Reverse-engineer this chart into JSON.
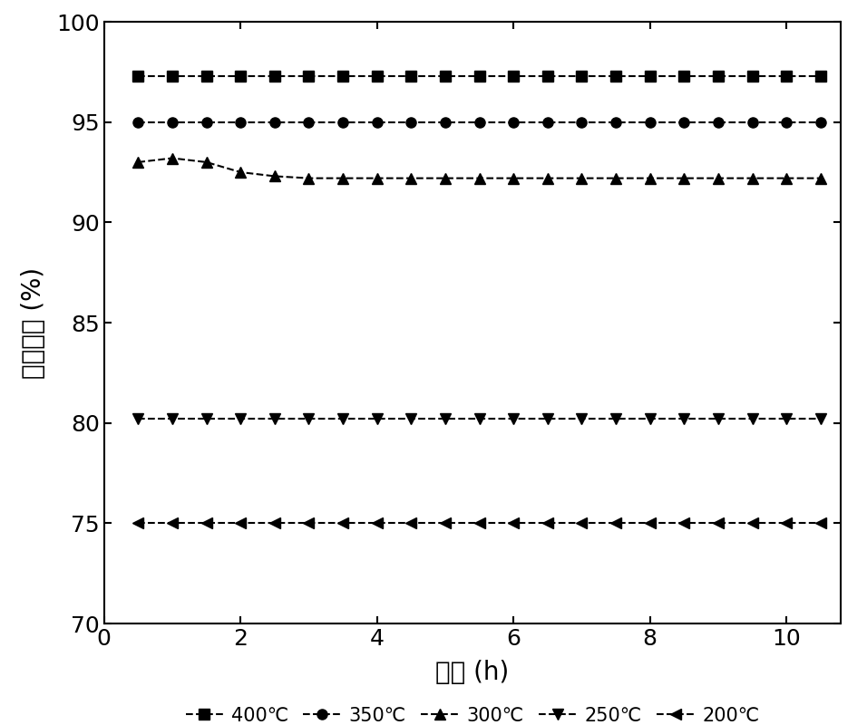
{
  "title": "",
  "xlabel": "时间 (h)",
  "ylabel": "脱硒效率 (%)",
  "xlim": [
    0,
    10.8
  ],
  "ylim": [
    70,
    100
  ],
  "yticks": [
    70,
    75,
    80,
    85,
    90,
    95,
    100
  ],
  "xticks": [
    0,
    2,
    4,
    6,
    8,
    10
  ],
  "series": [
    {
      "label": "400℃",
      "color": "#000000",
      "marker": "s",
      "x": [
        0.5,
        1.0,
        1.5,
        2.0,
        2.5,
        3.0,
        3.5,
        4.0,
        4.5,
        5.0,
        5.5,
        6.0,
        6.5,
        7.0,
        7.5,
        8.0,
        8.5,
        9.0,
        9.5,
        10.0,
        10.5
      ],
      "y": [
        97.3,
        97.3,
        97.3,
        97.3,
        97.3,
        97.3,
        97.3,
        97.3,
        97.3,
        97.3,
        97.3,
        97.3,
        97.3,
        97.3,
        97.3,
        97.3,
        97.3,
        97.3,
        97.3,
        97.3,
        97.3
      ]
    },
    {
      "label": "350℃",
      "color": "#000000",
      "marker": "o",
      "x": [
        0.5,
        1.0,
        1.5,
        2.0,
        2.5,
        3.0,
        3.5,
        4.0,
        4.5,
        5.0,
        5.5,
        6.0,
        6.5,
        7.0,
        7.5,
        8.0,
        8.5,
        9.0,
        9.5,
        10.0,
        10.5
      ],
      "y": [
        95.0,
        95.0,
        95.0,
        95.0,
        95.0,
        95.0,
        95.0,
        95.0,
        95.0,
        95.0,
        95.0,
        95.0,
        95.0,
        95.0,
        95.0,
        95.0,
        95.0,
        95.0,
        95.0,
        95.0,
        95.0
      ]
    },
    {
      "label": "300℃",
      "color": "#000000",
      "marker": "^",
      "x": [
        0.5,
        1.0,
        1.5,
        2.0,
        2.5,
        3.0,
        3.5,
        4.0,
        4.5,
        5.0,
        5.5,
        6.0,
        6.5,
        7.0,
        7.5,
        8.0,
        8.5,
        9.0,
        9.5,
        10.0,
        10.5
      ],
      "y": [
        93.0,
        93.2,
        93.0,
        92.5,
        92.3,
        92.2,
        92.2,
        92.2,
        92.2,
        92.2,
        92.2,
        92.2,
        92.2,
        92.2,
        92.2,
        92.2,
        92.2,
        92.2,
        92.2,
        92.2,
        92.2
      ]
    },
    {
      "label": "250℃",
      "color": "#000000",
      "marker": "v",
      "x": [
        0.5,
        1.0,
        1.5,
        2.0,
        2.5,
        3.0,
        3.5,
        4.0,
        4.5,
        5.0,
        5.5,
        6.0,
        6.5,
        7.0,
        7.5,
        8.0,
        8.5,
        9.0,
        9.5,
        10.0,
        10.5
      ],
      "y": [
        80.2,
        80.2,
        80.2,
        80.2,
        80.2,
        80.2,
        80.2,
        80.2,
        80.2,
        80.2,
        80.2,
        80.2,
        80.2,
        80.2,
        80.2,
        80.2,
        80.2,
        80.2,
        80.2,
        80.2,
        80.2
      ]
    },
    {
      "label": "200℃",
      "color": "#000000",
      "marker": "<",
      "x": [
        0.5,
        1.0,
        1.5,
        2.0,
        2.5,
        3.0,
        3.5,
        4.0,
        4.5,
        5.0,
        5.5,
        6.0,
        6.5,
        7.0,
        7.5,
        8.0,
        8.5,
        9.0,
        9.5,
        10.0,
        10.5
      ],
      "y": [
        75.0,
        75.0,
        75.0,
        75.0,
        75.0,
        75.0,
        75.0,
        75.0,
        75.0,
        75.0,
        75.0,
        75.0,
        75.0,
        75.0,
        75.0,
        75.0,
        75.0,
        75.0,
        75.0,
        75.0,
        75.0
      ]
    }
  ],
  "background_color": "#ffffff",
  "markersize": 8,
  "linewidth": 1.5,
  "linestyle": "--"
}
